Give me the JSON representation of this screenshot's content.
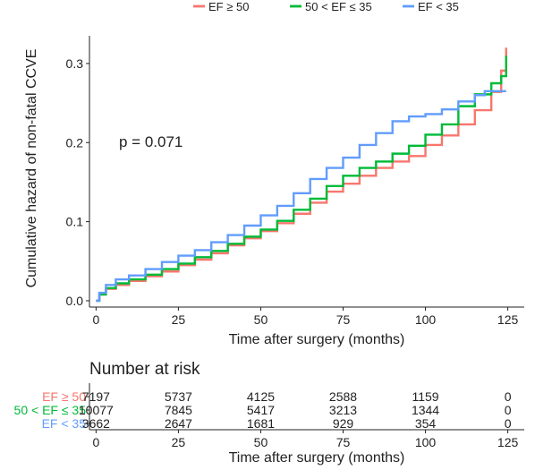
{
  "chart_data": {
    "type": "line",
    "step": true,
    "legend": {
      "position": "top",
      "entries": [
        {
          "label": "EF ≥ 50",
          "color": "#F8766D"
        },
        {
          "label": "50 < EF ≤ 35",
          "color": "#00BA38"
        },
        {
          "label": "EF < 35",
          "color": "#619CFF"
        }
      ]
    },
    "xlabel": "Time after surgery (months)",
    "ylabel": "Cumulative hazard of non-fatal CCVE",
    "xlim": [
      -2,
      130
    ],
    "ylim": [
      -0.008,
      0.335
    ],
    "xticks": [
      0,
      25,
      50,
      75,
      100,
      125
    ],
    "xtick_labels": [
      "0",
      "25",
      "50",
      "75",
      "100",
      "125"
    ],
    "yticks": [
      0.0,
      0.1,
      0.2,
      0.3
    ],
    "ytick_labels": [
      "0.0",
      "0.1",
      "0.2",
      "0.3"
    ],
    "annotation": "p = 0.071",
    "grid": false,
    "series": [
      {
        "name": "EF ≥ 50",
        "color": "#F8766D",
        "x": [
          0,
          1,
          3,
          6,
          10,
          15,
          20,
          25,
          30,
          35,
          40,
          45,
          50,
          55,
          60,
          65,
          70,
          75,
          80,
          85,
          90,
          95,
          100,
          105,
          110,
          115,
          120,
          123,
          124.5
        ],
        "y": [
          0,
          0.008,
          0.015,
          0.02,
          0.025,
          0.031,
          0.037,
          0.045,
          0.052,
          0.06,
          0.07,
          0.079,
          0.088,
          0.098,
          0.11,
          0.124,
          0.138,
          0.148,
          0.158,
          0.168,
          0.176,
          0.183,
          0.197,
          0.209,
          0.223,
          0.241,
          0.264,
          0.291,
          0.32
        ]
      },
      {
        "name": "50 < EF ≤ 35",
        "color": "#00BA38",
        "x": [
          0,
          1,
          3,
          6,
          10,
          15,
          20,
          25,
          30,
          35,
          40,
          45,
          50,
          55,
          60,
          65,
          70,
          75,
          80,
          85,
          90,
          95,
          100,
          105,
          110,
          115,
          120,
          123,
          124.5
        ],
        "y": [
          0,
          0.008,
          0.016,
          0.022,
          0.027,
          0.033,
          0.04,
          0.047,
          0.055,
          0.063,
          0.072,
          0.081,
          0.09,
          0.101,
          0.115,
          0.129,
          0.145,
          0.158,
          0.168,
          0.176,
          0.186,
          0.196,
          0.21,
          0.223,
          0.246,
          0.261,
          0.275,
          0.284,
          0.31
        ]
      },
      {
        "name": "EF < 35",
        "color": "#619CFF",
        "x": [
          0,
          1,
          3,
          6,
          10,
          15,
          20,
          25,
          30,
          35,
          40,
          45,
          50,
          55,
          60,
          65,
          70,
          75,
          80,
          85,
          90,
          95,
          100,
          105,
          110,
          115,
          118,
          120,
          124.5
        ],
        "y": [
          0,
          0.01,
          0.02,
          0.027,
          0.032,
          0.04,
          0.049,
          0.057,
          0.064,
          0.074,
          0.083,
          0.095,
          0.108,
          0.12,
          0.136,
          0.154,
          0.168,
          0.181,
          0.197,
          0.212,
          0.227,
          0.233,
          0.236,
          0.242,
          0.252,
          0.26,
          0.265,
          0.265,
          0.265
        ]
      }
    ],
    "risk_table": {
      "title": "Number at risk",
      "xlabel": "Time after surgery (months)",
      "times": [
        "0",
        "25",
        "50",
        "75",
        "100",
        "125"
      ],
      "rows": [
        {
          "label": "EF ≥ 50",
          "color": "#F8766D",
          "counts": [
            "7197",
            "5737",
            "4125",
            "2588",
            "1159",
            "0"
          ]
        },
        {
          "label": "50 < EF ≤ 35",
          "color": "#00BA38",
          "counts": [
            "10077",
            "7845",
            "5417",
            "3213",
            "1344",
            "0"
          ]
        },
        {
          "label": "EF < 35",
          "color": "#619CFF",
          "counts": [
            "3662",
            "2647",
            "1681",
            "929",
            "354",
            "0"
          ]
        }
      ]
    }
  }
}
